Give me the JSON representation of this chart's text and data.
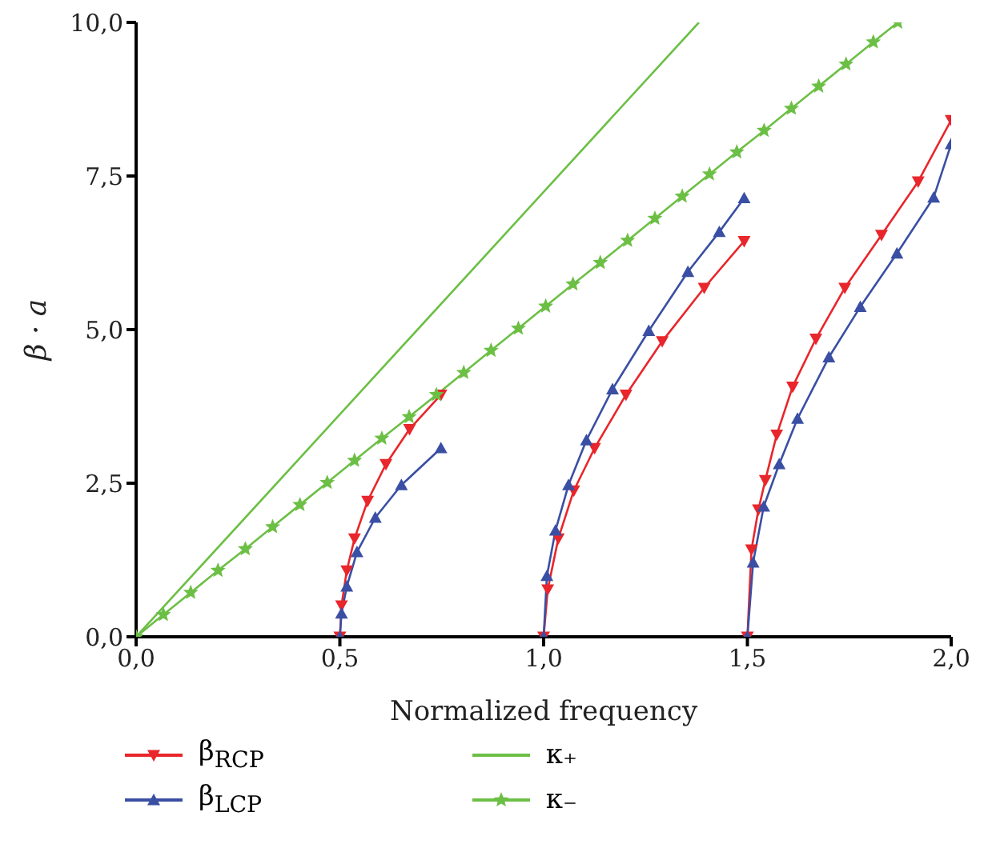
{
  "chart_data": {
    "type": "line",
    "xlabel": "Normalized frequency",
    "ylabel": "β · a",
    "xlim": [
      0,
      2
    ],
    "ylim": [
      0,
      10
    ],
    "xticks": [
      {
        "value": 0,
        "label": "0,0"
      },
      {
        "value": 0.5,
        "label": "0,5"
      },
      {
        "value": 1,
        "label": "1,0"
      },
      {
        "value": 1.5,
        "label": "1,5"
      },
      {
        "value": 2,
        "label": "2,0"
      }
    ],
    "yticks": [
      {
        "value": 0,
        "label": "0,0"
      },
      {
        "value": 2.5,
        "label": "2,5"
      },
      {
        "value": 5,
        "label": "5,0"
      },
      {
        "value": 7.5,
        "label": "7,5"
      },
      {
        "value": 10,
        "label": "10,0"
      }
    ],
    "legend": "bottom",
    "series": [
      {
        "name": "β$_{RCP}$",
        "color": "#e8262b",
        "marker": "triangle-down",
        "x": [
          0.5,
          0.504,
          0.517,
          0.536,
          0.568,
          0.613,
          0.671,
          0.748,
          0.87,
          1.0,
          1.01,
          1.036,
          1.074,
          1.125,
          1.202,
          1.291,
          1.394,
          1.492,
          1.495,
          1.5,
          1.51,
          1.527,
          1.544,
          1.572,
          1.611,
          1.668,
          1.739,
          1.829,
          1.919,
          2.0
        ],
        "values": [
          0,
          0.51,
          1.08,
          1.6,
          2.21,
          2.81,
          3.38,
          3.94,
          null,
          0,
          0.77,
          1.6,
          2.38,
          3.07,
          3.94,
          4.81,
          5.68,
          6.44,
          null,
          0,
          1.42,
          2.07,
          2.55,
          3.29,
          4.07,
          4.85,
          5.68,
          6.54,
          7.41,
          8.41
        ]
      },
      {
        "name": "β$_{LCP}$",
        "color": "#3a4fa3",
        "marker": "triangle",
        "x": [
          0.5,
          0.504,
          0.517,
          0.542,
          0.587,
          0.651,
          0.748,
          0.87,
          1.0,
          1.008,
          1.029,
          1.061,
          1.105,
          1.169,
          1.258,
          1.354,
          1.431,
          1.492,
          1.495,
          1.5,
          1.514,
          1.54,
          1.578,
          1.623,
          1.7,
          1.777,
          1.867,
          1.957,
          2.0
        ],
        "values": [
          0,
          0.38,
          0.82,
          1.38,
          1.94,
          2.47,
          3.07,
          null,
          0,
          0.99,
          1.73,
          2.47,
          3.2,
          4.03,
          4.98,
          5.94,
          6.59,
          7.14,
          null,
          0,
          1.21,
          2.12,
          2.81,
          3.55,
          4.55,
          5.37,
          6.24,
          7.15,
          8.02
        ]
      },
      {
        "name": "κ₊",
        "color": "#6cbf45",
        "x": [
          0,
          1.381
        ],
        "values": [
          0,
          10
        ]
      },
      {
        "name": "κ₋",
        "color": "#6cbf45",
        "marker": "star",
        "x": [
          0,
          0.067,
          0.134,
          0.201,
          0.268,
          0.335,
          0.402,
          0.469,
          0.536,
          0.603,
          0.67,
          0.737,
          0.804,
          0.871,
          0.938,
          1.005,
          1.072,
          1.139,
          1.206,
          1.273,
          1.34,
          1.407,
          1.474,
          1.541,
          1.608,
          1.675,
          1.742,
          1.809,
          1.869
        ],
        "values": [
          0,
          0.36,
          0.72,
          1.08,
          1.43,
          1.79,
          2.15,
          2.51,
          2.87,
          3.23,
          3.58,
          3.94,
          4.3,
          4.66,
          5.02,
          5.38,
          5.74,
          6.09,
          6.45,
          6.81,
          7.17,
          7.53,
          7.89,
          8.24,
          8.6,
          8.96,
          9.32,
          9.68,
          10.0
        ]
      }
    ]
  }
}
